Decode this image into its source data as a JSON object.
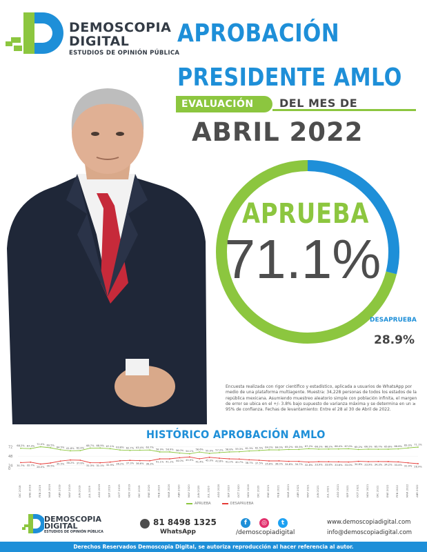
{
  "brand": {
    "line1": "DEMOSCOPIA",
    "line2": "DIGITAL",
    "line3": "ESTUDIOS DE OPINIÓN PÚBLICA"
  },
  "header": {
    "title_line1": "APROBACIÓN",
    "title_line2": "PRESIDENTE AMLO",
    "eval_label": "EVALUACIÓN",
    "del_mes": "DEL MES DE",
    "month": "ABRIL 2022"
  },
  "colors": {
    "green": "#8cc63f",
    "blue": "#1e8fd8",
    "dark": "#4d4d4d",
    "red": "#e53935"
  },
  "result": {
    "aprueba_label": "APRUEBA",
    "aprueba_value": "71.1%",
    "desaprueba_label": "DESAPRUEBA",
    "desaprueba_value": "28.9%"
  },
  "methodology": "Encuesta realizada con rigor científico y estadístico, aplicada a usuarios de WhatsApp por medio de una plataforma multiagente. Muestra: 34,228 personas de todos los estados de la república mexicana. Asumiendo muestreo aleatorio simple con población infinita, el margen de error se ubica en el +/- 3.8% bajo supuesto de varianza máxima y se determina en un ≥ 95% de confianza. Fechas de levantamiento: Entre el 28 al 30 de Abril de 2022.",
  "chart_data": [
    {
      "type": "pie",
      "categories": [
        "APRUEBA",
        "DESAPRUEBA"
      ],
      "values": [
        71.1,
        28.9
      ],
      "colors": [
        "#8cc63f",
        "#1e8fd8"
      ]
    },
    {
      "type": "line",
      "title": "HISTÓRICO APROBACIÓN AMLO",
      "x": [
        "DIC 2018",
        "ENE 2019",
        "FEB 2019",
        "MAR 2019",
        "ABR 2019",
        "MAY 2019",
        "JUN 2019",
        "JUL 2019",
        "AGO 2019",
        "SEP 2019",
        "OCT 2019",
        "NOV 2019",
        "DIC 2019",
        "ENE 2020",
        "FEB 2020",
        "MAR 2020",
        "ABR 2020",
        "MAY 2020",
        "JUN 2020",
        "JUL 2020",
        "AGO 2020",
        "SEP 2020",
        "OCT 2020",
        "NOV 2020",
        "DIC 2020",
        "ENE 2021",
        "FEB 2021",
        "MAR 2021",
        "ABR 2021",
        "MAY 2021",
        "JUN 2021",
        "JUL 2021",
        "AGO 2021",
        "SEP 2021",
        "OCT 2021",
        "NOV 2021",
        "DIC 2021",
        "ENE 2022",
        "FEB 2022",
        "MAR 2022",
        "ABR 2022"
      ],
      "series": [
        {
          "name": "APRUEBA",
          "values": [
            68.2,
            67.3,
            72.0,
            69.5,
            64.5,
            61.8,
            62.4,
            68.7,
            68.9,
            67.1,
            63.8,
            62.7,
            63.4,
            63.7,
            58.9,
            58.9,
            56.0,
            54.1,
            58.6,
            55.0,
            57.2,
            58.8,
            59.3,
            61.3,
            62.5,
            64.2,
            64.0,
            65.2,
            65.3,
            67.2,
            66.1,
            66.2,
            66.4,
            67.0,
            65.2,
            66.1,
            65.7,
            65.8,
            66.6,
            69.0,
            71.1
          ]
        },
        {
          "name": "DESAPRUEBA",
          "values": [
            31.7,
            32.7,
            28.0,
            30.5,
            35.5,
            38.2,
            37.6,
            31.3,
            31.1,
            32.9,
            36.2,
            37.3,
            36.6,
            36.3,
            41.1,
            41.1,
            44.0,
            45.9,
            41.4,
            45.0,
            42.8,
            41.2,
            40.7,
            38.7,
            37.5,
            35.8,
            36.0,
            34.8,
            34.7,
            32.8,
            33.9,
            33.8,
            33.6,
            33.0,
            34.8,
            33.9,
            34.3,
            34.2,
            33.4,
            31.0,
            28.9
          ]
        }
      ],
      "ylim": [
        0,
        100
      ]
    }
  ],
  "legend": {
    "aprueba": "APRUEBA",
    "desaprueba": "DESAPRUEBA"
  },
  "footer": {
    "phone": "81 8498 1325",
    "phone_label": "WhatsApp",
    "handle": "/demoscopiadigital",
    "web": "www.demoscopiadigital.com",
    "email": "info@demoscopiadigital.com",
    "rights": "Derechos Reservados Demoscopia Digital, se autoriza reproducción al hacer referencia al autor.",
    "fb_icon": "facebook-icon",
    "ig_icon": "instagram-icon",
    "tw_icon": "twitter-icon"
  }
}
